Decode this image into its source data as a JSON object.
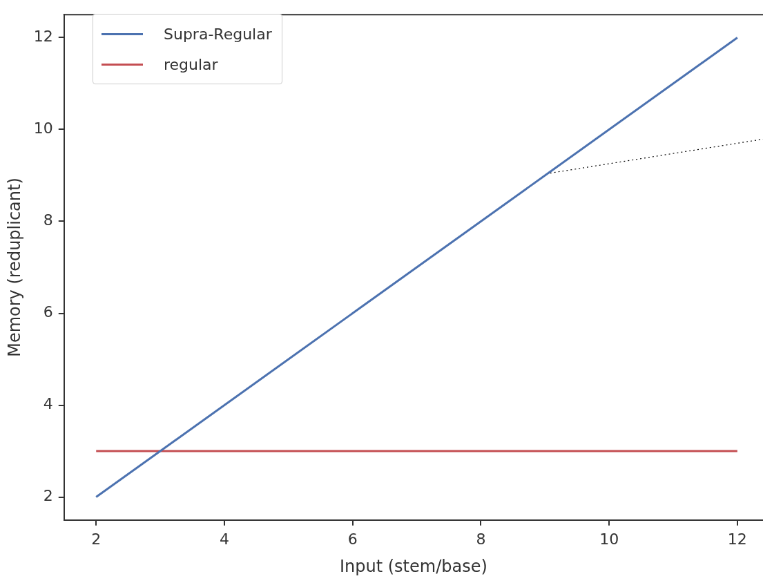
{
  "chart_data": {
    "type": "line",
    "xlabel": "Input (stem/base)",
    "ylabel": "Memory (reduplicant)",
    "xlim": [
      1.5,
      12.4
    ],
    "ylim": [
      1.5,
      12.5
    ],
    "xticks": [
      2,
      4,
      6,
      8,
      10,
      12
    ],
    "yticks": [
      2,
      4,
      6,
      8,
      10,
      12
    ],
    "grid": false,
    "legend": "top left",
    "marker": "none",
    "series": [
      {
        "name": "Supra-Regular",
        "color": "#4c72b0",
        "x": [
          2,
          12
        ],
        "values": [
          2,
          12
        ]
      },
      {
        "name": "regular",
        "color": "#c44e52",
        "x": [
          2,
          12
        ],
        "values": [
          3,
          3
        ]
      },
      {
        "color": "#000000",
        "line_style": "dotted",
        "x": [
          9.08,
          12.4
        ],
        "values": [
          9.05,
          9.79
        ]
      }
    ]
  }
}
